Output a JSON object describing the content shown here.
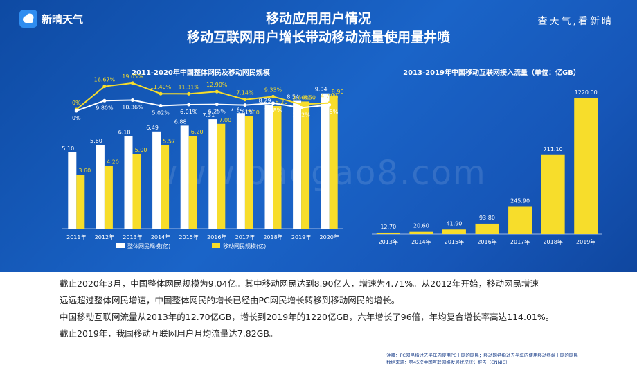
{
  "header": {
    "brand": "新晴天气",
    "slogan": "查天气,看新晴",
    "title_line1": "移动应用用户情况",
    "title_line2": "移动互联网用户增长带动移动流量使用量井喷"
  },
  "watermark": "www.baogao8.com",
  "chart_data": [
    {
      "type": "bar",
      "title": "2011-2020年中国整体网民及移动网民规模",
      "categories": [
        "2011年",
        "2012年",
        "2013年",
        "2014年",
        "2015年",
        "2016年",
        "2017年",
        "2018年",
        "2019年",
        "2020年"
      ],
      "series": [
        {
          "name": "整体网民规模(亿)",
          "color": "#ffffff",
          "values": [
            5.1,
            5.6,
            6.18,
            6.49,
            6.88,
            7.31,
            7.72,
            8.29,
            8.54,
            9.04
          ],
          "labels": [
            "5.10",
            "5.60",
            "6.18",
            "6.49",
            "6.88",
            "7.31",
            "7.72",
            "8.29",
            "8.54",
            "9.04"
          ]
        },
        {
          "name": "移动网民规模(亿)",
          "color": "#f7dd2b",
          "values": [
            3.6,
            4.2,
            5.0,
            5.57,
            6.2,
            7.0,
            7.5,
            8.2,
            8.5,
            8.9
          ],
          "labels": [
            "3.60",
            "4.20",
            "5.00",
            "5.57",
            "6.20",
            "7.00",
            "7.50",
            "8.20",
            "8.50",
            "8.90"
          ]
        }
      ],
      "growth_lines": [
        {
          "color": "#f7dd2b",
          "values": [
            0,
            16.67,
            19.05,
            11.4,
            11.31,
            12.9,
            7.14,
            9.33,
            3.66,
            4.71
          ],
          "labels": [
            "0%",
            "16.67%",
            "19.05%",
            "11.40%",
            "11.31%",
            "12.90%",
            "7.14%",
            "9.33%",
            "3.66%",
            "4.71%"
          ]
        },
        {
          "color": "#ffffff",
          "values": [
            0,
            9.8,
            10.36,
            5.02,
            6.01,
            6.25,
            5.61,
            7.38,
            3.02,
            5.85
          ],
          "labels": [
            "0%",
            "9.80%",
            "10.36%",
            "5.02%",
            "6.01%",
            "6.25%",
            "5.61%",
            "7.38%",
            "3.02%",
            "5.85%"
          ]
        }
      ],
      "ylim": [
        0,
        10
      ],
      "legend": "bottom"
    },
    {
      "type": "bar",
      "title": "2013-2019年中国移动互联网接入流量（单位：亿GB）",
      "categories": [
        "2013年",
        "2014年",
        "2015年",
        "2016年",
        "2017年",
        "2018年",
        "2019年"
      ],
      "series": [
        {
          "color": "#f7dd2b",
          "values": [
            12.7,
            20.6,
            41.9,
            93.8,
            245.9,
            711.1,
            1220.0
          ],
          "labels": [
            "12.70",
            "20.60",
            "41.90",
            "93.80",
            "245.90",
            "711.10",
            "1220.00"
          ]
        }
      ],
      "ylim": [
        0,
        1300
      ]
    }
  ],
  "description": [
    "截止2020年3月，中国整体网民规模为9.04亿。其中移动网民达到8.90亿人，增速为4.71%。从2012年开始，移动网民增速",
    "远远超过整体网民增速，中国整体网民的增长已经由PC网民增长转移到移动网民的增长。",
    "中国移动互联网流量从2013年的12.70亿GB，增长到2019年的1220亿GB，六年增长了96倍，年均复合增长率高达114.01%。",
    "截止2019年，我国移动互联网用户月均流量达7.82GB。"
  ],
  "notes": [
    "注释：PC网民指过去半年内使用PC上网的网民；移动网名指过去半年内使用移动终端上网的网民",
    "数据来源：第45次中国互联网络发展状况统计报告（CNNIC）"
  ]
}
